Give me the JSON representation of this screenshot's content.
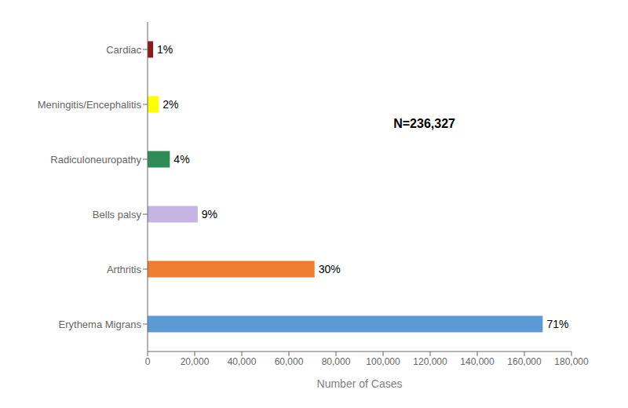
{
  "chart_data": {
    "type": "bar",
    "orientation": "horizontal",
    "xlabel": "Number of Cases",
    "annotation": "N=236,327",
    "categories": [
      "Erythema Migrans",
      "Arthritis",
      "Bells palsy",
      "Radiculoneuropathy",
      "Meningitis/Encephalitis",
      "Cardiac"
    ],
    "values": [
      167792,
      70898,
      21269,
      9453,
      4727,
      2363
    ],
    "colors": [
      "#5B9BD5",
      "#ED7D31",
      "#C5B4E3",
      "#2E8B57",
      "#FFFF00",
      "#8B1A1A"
    ],
    "percentage_labels": [
      "71%",
      "30%",
      "9%",
      "4%",
      "2%",
      "1%"
    ],
    "xlim": [
      0,
      180000
    ],
    "xticks": [
      0,
      {
        "value": 20000,
        "label": "20,000"
      },
      {
        "value": 40000,
        "label": "40,000"
      },
      {
        "value": 60000,
        "label": "60,000"
      },
      {
        "value": 80000,
        "label": "80,000"
      },
      {
        "value": 100000,
        "label": "100,000"
      },
      {
        "value": 120000,
        "label": "120,000"
      },
      {
        "value": 140000,
        "label": "140,000"
      },
      {
        "value": 160000,
        "label": "160,000"
      },
      {
        "value": 180000,
        "label": "180,000"
      }
    ],
    "grid": false
  }
}
